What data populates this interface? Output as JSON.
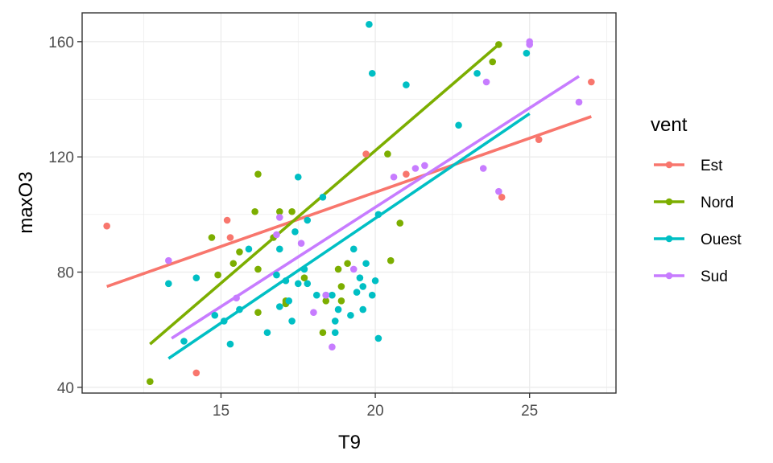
{
  "chart_data": {
    "type": "scatter",
    "xlabel": "T9",
    "ylabel": "maxO3",
    "xlim": [
      10.5,
      27.8
    ],
    "ylim": [
      38,
      170
    ],
    "x_ticks": [
      15,
      20,
      25
    ],
    "y_ticks": [
      40,
      80,
      120,
      160
    ],
    "grid": true,
    "legend": {
      "title": "vent",
      "position": "right"
    },
    "series": [
      {
        "name": "Est",
        "color": "#F8766D",
        "points": [
          [
            11.3,
            96
          ],
          [
            14.2,
            45
          ],
          [
            15.2,
            98
          ],
          [
            15.3,
            92
          ],
          [
            19.7,
            121
          ],
          [
            21.0,
            114
          ],
          [
            24.1,
            106
          ],
          [
            25.3,
            126
          ],
          [
            27.0,
            146
          ]
        ],
        "fit": [
          [
            11.3,
            75
          ],
          [
            27.0,
            134
          ]
        ]
      },
      {
        "name": "Nord",
        "color": "#7CAE00",
        "points": [
          [
            12.7,
            42
          ],
          [
            14.7,
            92
          ],
          [
            14.9,
            79
          ],
          [
            15.4,
            83
          ],
          [
            15.6,
            87
          ],
          [
            16.1,
            101
          ],
          [
            16.2,
            114
          ],
          [
            16.2,
            81
          ],
          [
            16.2,
            66
          ],
          [
            16.7,
            92
          ],
          [
            16.9,
            101
          ],
          [
            17.1,
            70
          ],
          [
            17.1,
            69
          ],
          [
            17.3,
            101
          ],
          [
            17.7,
            78
          ],
          [
            18.3,
            59
          ],
          [
            18.4,
            70
          ],
          [
            18.8,
            81
          ],
          [
            18.9,
            75
          ],
          [
            18.9,
            70
          ],
          [
            19.1,
            83
          ],
          [
            20.4,
            121
          ],
          [
            20.5,
            84
          ],
          [
            20.8,
            97
          ],
          [
            23.8,
            153
          ],
          [
            24.0,
            159
          ]
        ],
        "fit": [
          [
            12.7,
            55
          ],
          [
            24.0,
            159
          ]
        ]
      },
      {
        "name": "Ouest",
        "color": "#00BFC4",
        "points": [
          [
            13.3,
            76
          ],
          [
            13.8,
            56
          ],
          [
            14.2,
            78
          ],
          [
            14.8,
            65
          ],
          [
            15.1,
            63
          ],
          [
            15.3,
            55
          ],
          [
            15.6,
            67
          ],
          [
            15.9,
            88
          ],
          [
            16.5,
            59
          ],
          [
            16.8,
            79
          ],
          [
            16.9,
            68
          ],
          [
            16.9,
            88
          ],
          [
            17.1,
            77
          ],
          [
            17.2,
            70
          ],
          [
            17.3,
            63
          ],
          [
            17.4,
            94
          ],
          [
            17.5,
            113
          ],
          [
            17.5,
            76
          ],
          [
            17.7,
            81
          ],
          [
            17.8,
            76
          ],
          [
            17.8,
            98
          ],
          [
            18.1,
            72
          ],
          [
            18.3,
            106
          ],
          [
            18.4,
            72
          ],
          [
            18.6,
            72
          ],
          [
            18.7,
            59
          ],
          [
            18.7,
            63
          ],
          [
            18.8,
            67
          ],
          [
            19.2,
            65
          ],
          [
            19.3,
            88
          ],
          [
            19.4,
            73
          ],
          [
            19.5,
            78
          ],
          [
            19.6,
            67
          ],
          [
            19.6,
            75
          ],
          [
            19.7,
            83
          ],
          [
            19.8,
            166
          ],
          [
            19.9,
            149
          ],
          [
            19.9,
            72
          ],
          [
            20.0,
            77
          ],
          [
            20.1,
            100
          ],
          [
            20.1,
            57
          ],
          [
            21.0,
            145
          ],
          [
            22.7,
            131
          ],
          [
            23.3,
            149
          ],
          [
            24.9,
            156
          ]
        ],
        "fit": [
          [
            13.3,
            50
          ],
          [
            25.0,
            135
          ]
        ]
      },
      {
        "name": "Sud",
        "color": "#C77CFF",
        "points": [
          [
            13.3,
            84
          ],
          [
            15.5,
            71
          ],
          [
            16.8,
            93
          ],
          [
            16.9,
            99
          ],
          [
            17.6,
            90
          ],
          [
            18.0,
            66
          ],
          [
            18.4,
            72
          ],
          [
            18.6,
            54
          ],
          [
            19.3,
            81
          ],
          [
            20.6,
            113
          ],
          [
            21.3,
            116
          ],
          [
            21.6,
            117
          ],
          [
            23.5,
            116
          ],
          [
            23.6,
            146
          ],
          [
            24.0,
            108
          ],
          [
            25.0,
            159
          ],
          [
            25.0,
            160
          ],
          [
            26.6,
            139
          ]
        ],
        "fit": [
          [
            13.4,
            57
          ],
          [
            26.6,
            148
          ]
        ]
      }
    ]
  }
}
